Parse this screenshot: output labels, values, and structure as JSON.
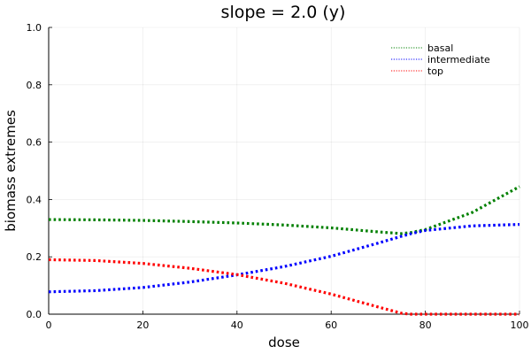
{
  "chart_data": {
    "type": "line",
    "title": "slope = 2.0 (y)",
    "xlabel": "dose",
    "ylabel": "biomass extremes",
    "xlim": [
      0,
      100
    ],
    "ylim": [
      0,
      1.0
    ],
    "xticks": [
      "0",
      "20",
      "40",
      "60",
      "80",
      "100"
    ],
    "yticks": [
      "0.0",
      "0.2",
      "0.4",
      "0.6",
      "0.8",
      "1.0"
    ],
    "grid": true,
    "legend_position": "top-right",
    "x": [
      0,
      10,
      20,
      30,
      40,
      50,
      60,
      70,
      75,
      77,
      80,
      90,
      100
    ],
    "series": [
      {
        "name": "basal",
        "color": "#008000",
        "style": "dotted",
        "values": [
          0.33,
          0.329,
          0.327,
          0.323,
          0.318,
          0.311,
          0.301,
          0.287,
          0.281,
          0.285,
          0.295,
          0.355,
          0.445
        ]
      },
      {
        "name": "intermediate",
        "color": "#0000ff",
        "style": "dotted",
        "values": [
          0.078,
          0.082,
          0.093,
          0.112,
          0.137,
          0.166,
          0.202,
          0.248,
          0.272,
          0.281,
          0.292,
          0.308,
          0.313
        ]
      },
      {
        "name": "top",
        "color": "#ff0000",
        "style": "dotted",
        "values": [
          0.19,
          0.187,
          0.177,
          0.16,
          0.138,
          0.108,
          0.07,
          0.025,
          0.003,
          0.0,
          0.0,
          0.0,
          0.0
        ]
      }
    ]
  }
}
